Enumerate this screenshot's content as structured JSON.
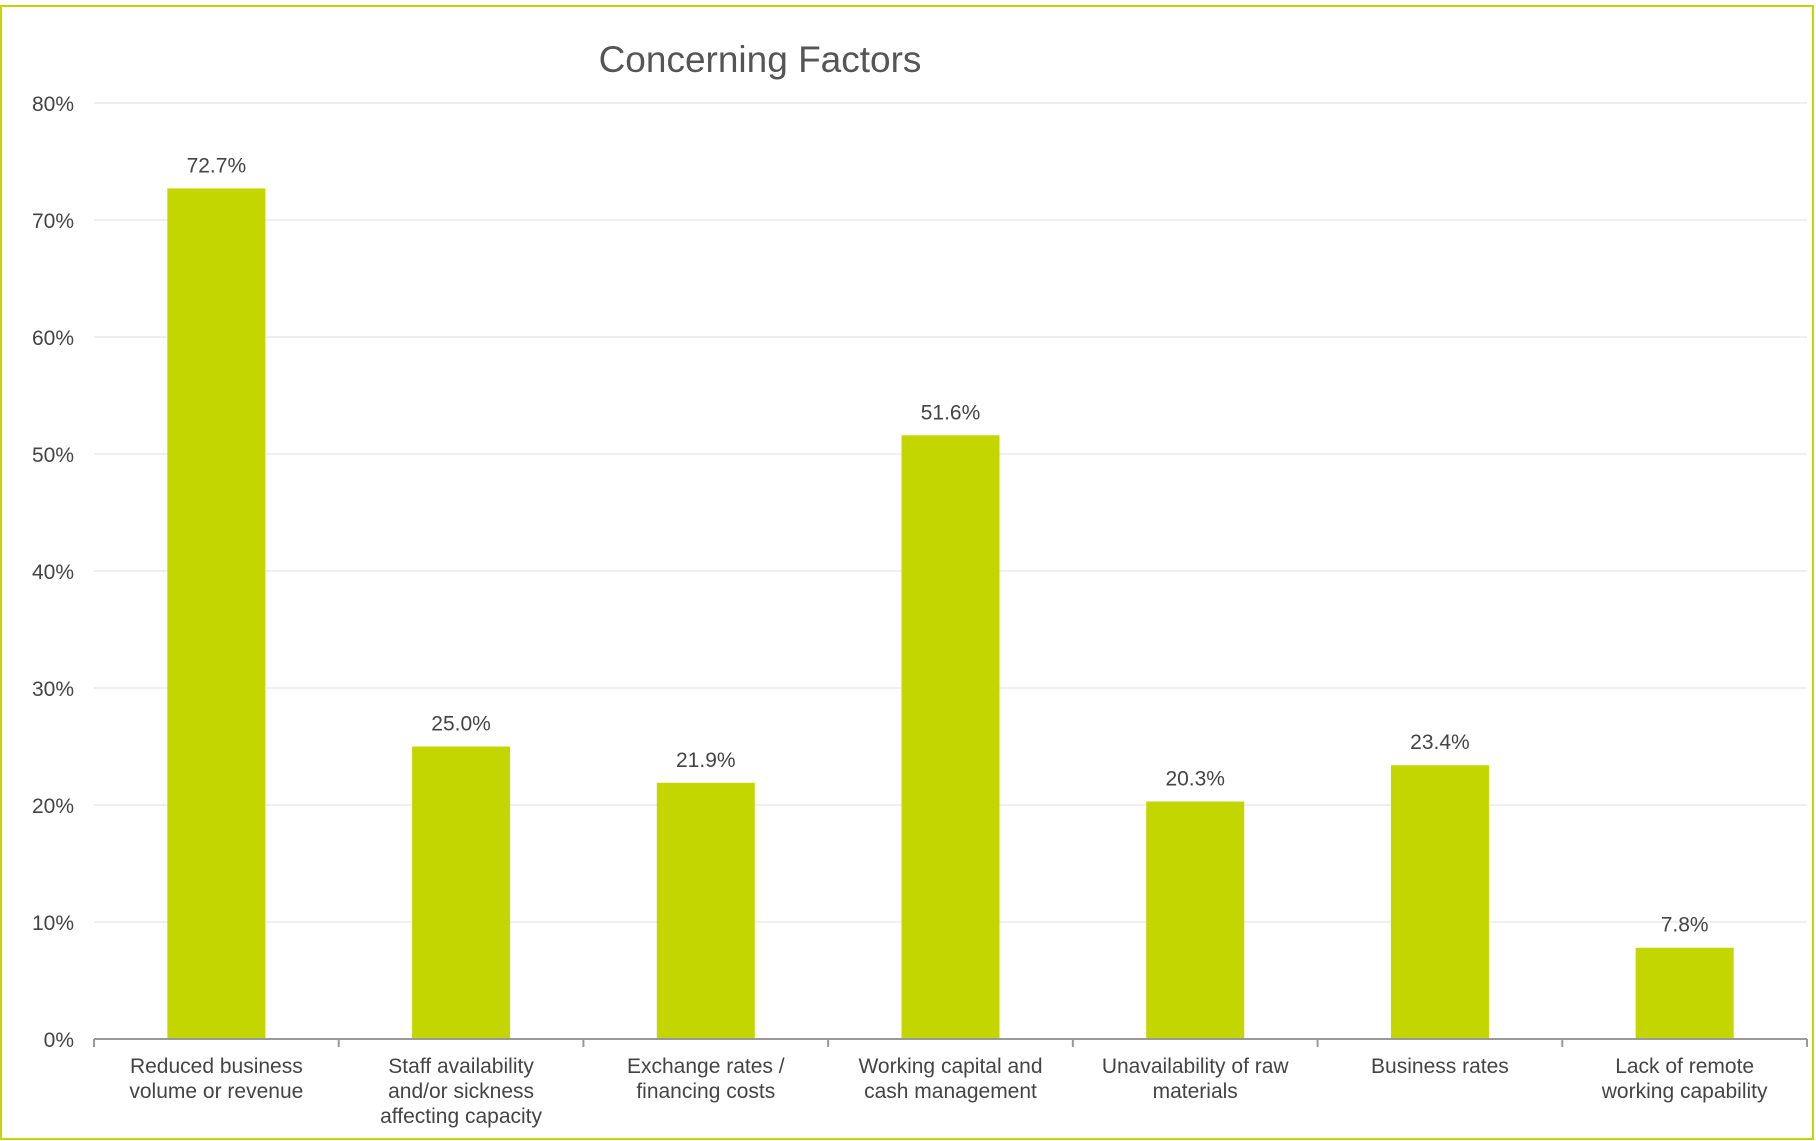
{
  "chart_data": {
    "type": "bar",
    "title": "Concerning Factors",
    "categories": [
      [
        "Reduced business",
        "volume or revenue"
      ],
      [
        "Staff availability",
        "and/or sickness",
        "affecting capacity"
      ],
      [
        "Exchange rates /",
        "financing costs"
      ],
      [
        "Working capital and",
        "cash management"
      ],
      [
        "Unavailability of raw",
        "materials"
      ],
      [
        "Business rates"
      ],
      [
        "Lack of remote",
        "working capability"
      ]
    ],
    "values": [
      72.7,
      25.0,
      21.9,
      51.6,
      20.3,
      23.4,
      7.8
    ],
    "data_labels": [
      "72.7%",
      "25.0%",
      "21.9%",
      "51.6%",
      "20.3%",
      "23.4%",
      "7.8%"
    ],
    "y_ticks": [
      0,
      10,
      20,
      30,
      40,
      50,
      60,
      70,
      80
    ],
    "y_tick_labels": [
      "0%",
      "10%",
      "20%",
      "30%",
      "40%",
      "50%",
      "60%",
      "70%",
      "80%"
    ],
    "ylim": [
      0,
      80
    ],
    "xlabel": "",
    "ylabel": "",
    "grid": true,
    "legend": "none",
    "colors": {
      "bar": "#c4d600",
      "frame": "#c4d600",
      "grid": "#ececec",
      "axis": "#999999",
      "text": "#444444",
      "title": "#555555"
    }
  }
}
